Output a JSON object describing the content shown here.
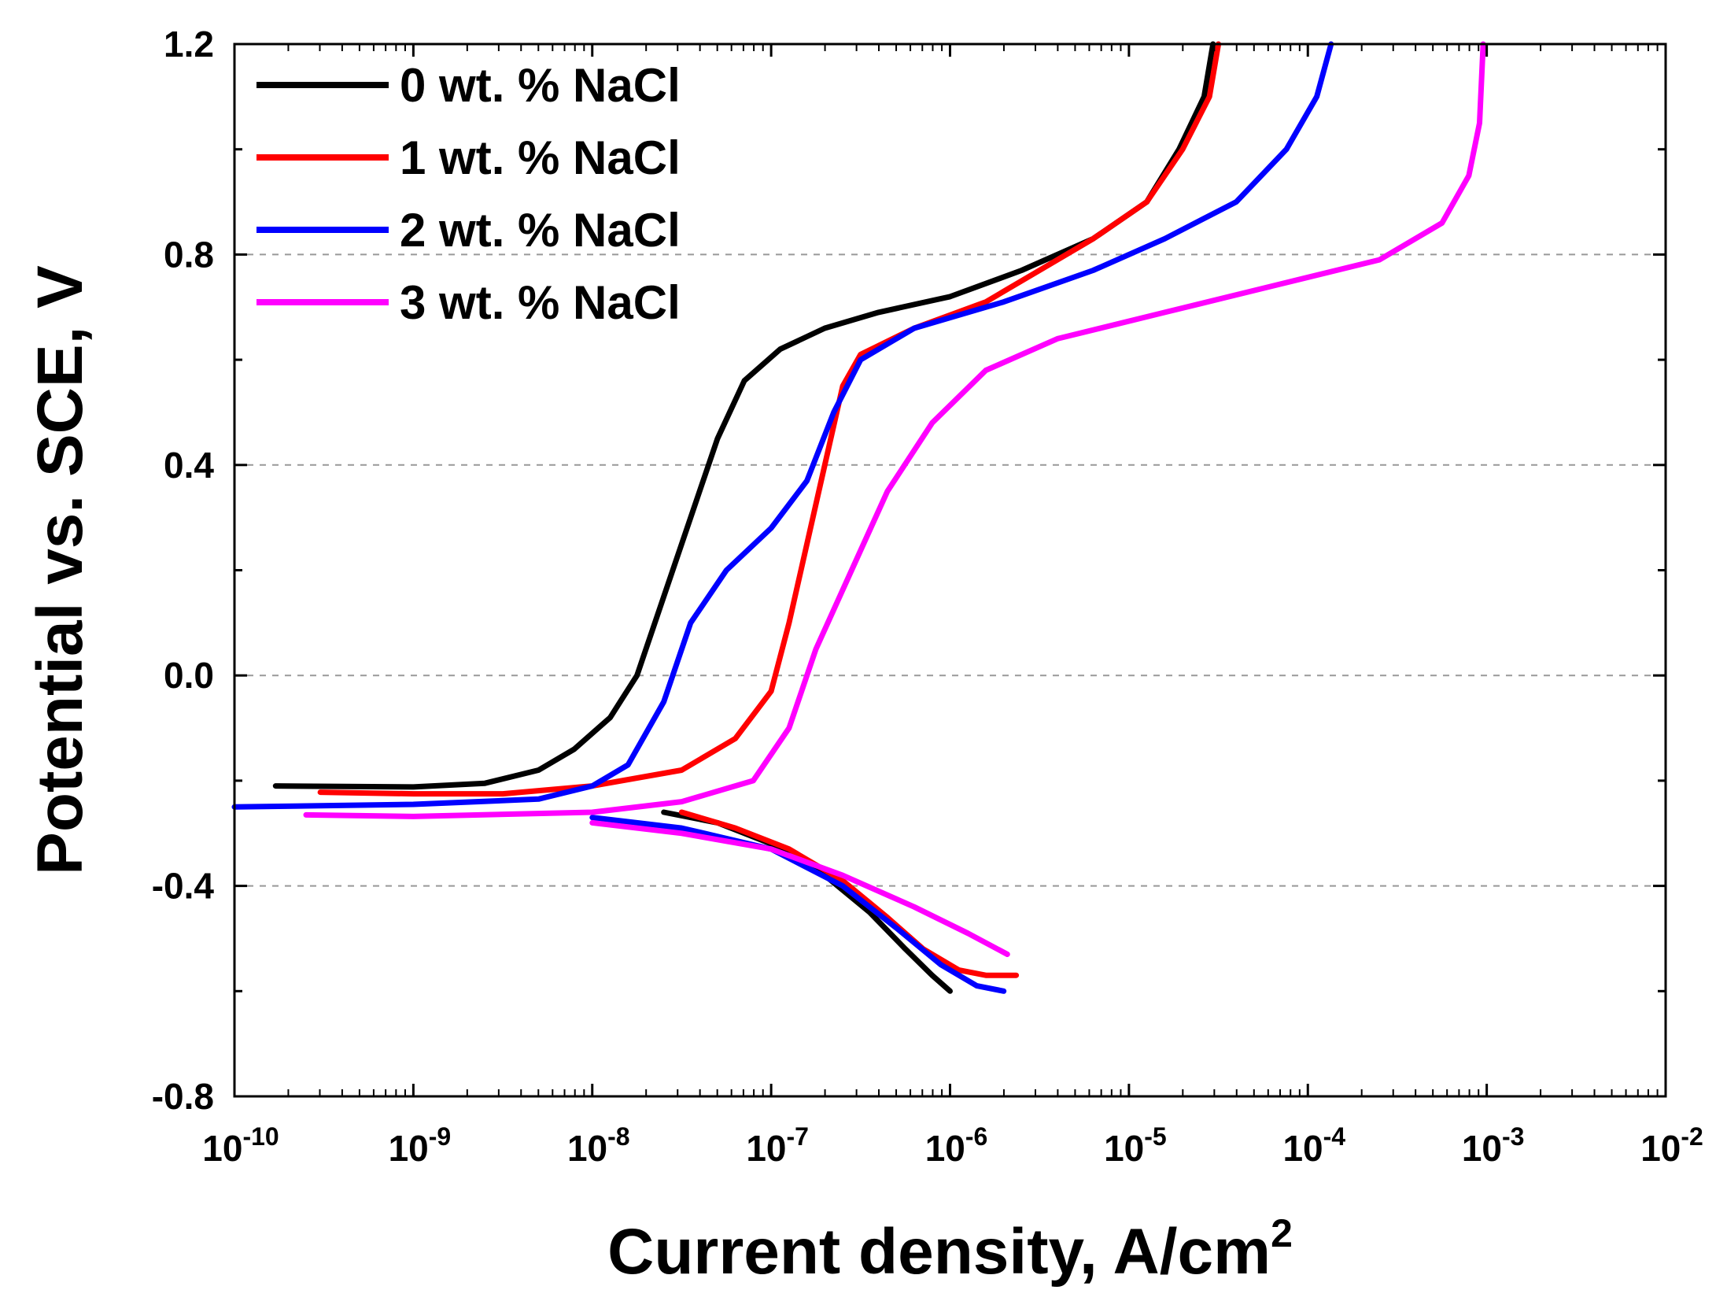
{
  "chart_data": {
    "type": "line",
    "title": "",
    "xlabel": "Current density, A/cm",
    "xlabel_superscript": "2",
    "ylabel": "Potential vs. SCE, V",
    "x_scale": "log",
    "x_log_range": [
      -10,
      -2
    ],
    "ylim": [
      -0.8,
      1.2
    ],
    "y_ticks": [
      -0.8,
      -0.4,
      0.0,
      0.4,
      0.8,
      1.2
    ],
    "y_tick_labels": [
      "-0.8",
      "-0.4",
      "0.0",
      "0.4",
      "0.8",
      "1.2"
    ],
    "x_tick_exponents": [
      -10,
      -9,
      -8,
      -7,
      -6,
      -5,
      -4,
      -3,
      -2
    ],
    "x_tick_base": "10",
    "x_tick_labels": [
      "10-10",
      "10-9",
      "10-8",
      "10-7",
      "10-6",
      "10-5",
      "10-4",
      "10-3",
      "10-2"
    ],
    "grid_y": [
      -0.4,
      0.0,
      0.4,
      0.8
    ],
    "legend_position": "top-left",
    "series": [
      {
        "name": "0 wt. % NaCl",
        "color": "#000000",
        "points": [
          [
            -9.77,
            -0.21
          ],
          [
            -9.0,
            -0.212
          ],
          [
            -8.6,
            -0.205
          ],
          [
            -8.3,
            -0.18
          ],
          [
            -8.1,
            -0.14
          ],
          [
            -7.9,
            -0.08
          ],
          [
            -7.75,
            0.0
          ],
          [
            -7.6,
            0.15
          ],
          [
            -7.45,
            0.3
          ],
          [
            -7.3,
            0.45
          ],
          [
            -7.15,
            0.56
          ],
          [
            -6.95,
            0.62
          ],
          [
            -6.7,
            0.66
          ],
          [
            -6.4,
            0.69
          ],
          [
            -6.0,
            0.72
          ],
          [
            -5.6,
            0.77
          ],
          [
            -5.2,
            0.83
          ],
          [
            -4.9,
            0.9
          ],
          [
            -4.72,
            1.0
          ],
          [
            -4.58,
            1.1
          ],
          [
            -4.53,
            1.2
          ]
        ],
        "cathodic": [
          [
            -7.6,
            -0.26
          ],
          [
            -7.3,
            -0.28
          ],
          [
            -7.0,
            -0.32
          ],
          [
            -6.7,
            -0.38
          ],
          [
            -6.45,
            -0.45
          ],
          [
            -6.25,
            -0.52
          ],
          [
            -6.1,
            -0.57
          ],
          [
            -6.0,
            -0.6
          ]
        ]
      },
      {
        "name": "1 wt. % NaCl",
        "color": "#ff0000",
        "points": [
          [
            -9.52,
            -0.222
          ],
          [
            -9.0,
            -0.225
          ],
          [
            -8.5,
            -0.225
          ],
          [
            -8.0,
            -0.21
          ],
          [
            -7.5,
            -0.18
          ],
          [
            -7.2,
            -0.12
          ],
          [
            -7.0,
            -0.03
          ],
          [
            -6.9,
            0.1
          ],
          [
            -6.8,
            0.25
          ],
          [
            -6.7,
            0.4
          ],
          [
            -6.6,
            0.55
          ],
          [
            -6.5,
            0.61
          ],
          [
            -6.2,
            0.66
          ],
          [
            -5.8,
            0.71
          ],
          [
            -5.5,
            0.77
          ],
          [
            -5.2,
            0.83
          ],
          [
            -4.9,
            0.9
          ],
          [
            -4.7,
            1.0
          ],
          [
            -4.55,
            1.1
          ],
          [
            -4.5,
            1.2
          ]
        ],
        "cathodic": [
          [
            -7.5,
            -0.26
          ],
          [
            -7.2,
            -0.29
          ],
          [
            -6.9,
            -0.33
          ],
          [
            -6.6,
            -0.39
          ],
          [
            -6.35,
            -0.46
          ],
          [
            -6.15,
            -0.52
          ],
          [
            -5.95,
            -0.56
          ],
          [
            -5.8,
            -0.57
          ],
          [
            -5.63,
            -0.57
          ]
        ]
      },
      {
        "name": "2 wt. % NaCl",
        "color": "#0000ff",
        "points": [
          [
            -10.0,
            -0.25
          ],
          [
            -9.0,
            -0.245
          ],
          [
            -8.3,
            -0.235
          ],
          [
            -8.0,
            -0.21
          ],
          [
            -7.8,
            -0.17
          ],
          [
            -7.6,
            -0.05
          ],
          [
            -7.45,
            0.1
          ],
          [
            -7.25,
            0.2
          ],
          [
            -7.0,
            0.28
          ],
          [
            -6.8,
            0.37
          ],
          [
            -6.65,
            0.5
          ],
          [
            -6.5,
            0.6
          ],
          [
            -6.2,
            0.66
          ],
          [
            -5.7,
            0.71
          ],
          [
            -5.2,
            0.77
          ],
          [
            -4.8,
            0.83
          ],
          [
            -4.4,
            0.9
          ],
          [
            -4.12,
            1.0
          ],
          [
            -3.95,
            1.1
          ],
          [
            -3.87,
            1.2
          ]
        ],
        "cathodic": [
          [
            -8.0,
            -0.27
          ],
          [
            -7.5,
            -0.29
          ],
          [
            -7.0,
            -0.33
          ],
          [
            -6.6,
            -0.4
          ],
          [
            -6.3,
            -0.48
          ],
          [
            -6.05,
            -0.55
          ],
          [
            -5.85,
            -0.59
          ],
          [
            -5.7,
            -0.6
          ]
        ]
      },
      {
        "name": "3 wt. % NaCl",
        "color": "#ff00ff",
        "points": [
          [
            -9.6,
            -0.265
          ],
          [
            -9.0,
            -0.268
          ],
          [
            -8.0,
            -0.26
          ],
          [
            -7.5,
            -0.24
          ],
          [
            -7.1,
            -0.2
          ],
          [
            -6.9,
            -0.1
          ],
          [
            -6.75,
            0.05
          ],
          [
            -6.55,
            0.2
          ],
          [
            -6.35,
            0.35
          ],
          [
            -6.1,
            0.48
          ],
          [
            -5.8,
            0.58
          ],
          [
            -5.4,
            0.64
          ],
          [
            -4.8,
            0.69
          ],
          [
            -4.2,
            0.74
          ],
          [
            -3.6,
            0.79
          ],
          [
            -3.25,
            0.86
          ],
          [
            -3.1,
            0.95
          ],
          [
            -3.04,
            1.05
          ],
          [
            -3.02,
            1.2
          ]
        ],
        "cathodic": [
          [
            -8.0,
            -0.28
          ],
          [
            -7.5,
            -0.3
          ],
          [
            -7.0,
            -0.33
          ],
          [
            -6.6,
            -0.38
          ],
          [
            -6.2,
            -0.44
          ],
          [
            -5.9,
            -0.49
          ],
          [
            -5.68,
            -0.53
          ]
        ]
      }
    ]
  }
}
